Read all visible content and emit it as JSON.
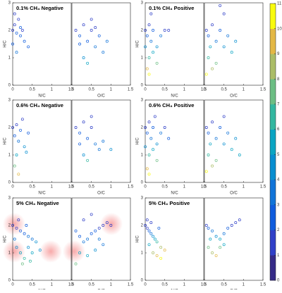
{
  "chart_data": [
    {
      "type": "scatter",
      "title": "0.1% CH₄ Negative",
      "xlabel": "N/C",
      "ylabel": "H/C",
      "xlim": [
        0,
        1.5
      ],
      "ylim": [
        0,
        3
      ],
      "xticks": [
        0,
        0.5,
        1,
        1.5
      ],
      "yticks": [
        0,
        1,
        2,
        3
      ],
      "x": [
        0,
        0,
        0.05,
        0.1,
        0.15,
        0.2,
        0.25,
        0.3,
        0.1,
        0.05,
        0.2,
        0.4
      ],
      "y": [
        2,
        1.5,
        2.2,
        1.9,
        2.4,
        1.8,
        2,
        1.6,
        1.2,
        2.6,
        2.1,
        1.4
      ],
      "color_values": [
        1,
        2,
        1,
        2,
        1,
        2,
        1,
        2,
        3,
        1,
        2,
        2
      ]
    },
    {
      "type": "scatter",
      "xlabel": "O/C",
      "xlim": [
        0,
        1.5
      ],
      "ylim": [
        0,
        3
      ],
      "xticks": [
        0,
        0.5,
        1,
        1.5
      ],
      "x": [
        0.1,
        0.2,
        0.3,
        0.4,
        0.5,
        0.6,
        0.7,
        0.8,
        0.3,
        0.5,
        0.2,
        0.6,
        0.9,
        0.4
      ],
      "y": [
        2,
        1.8,
        2.2,
        1.6,
        2,
        1.4,
        1.8,
        1.2,
        1,
        2.4,
        1.5,
        2.1,
        1.6,
        0.8
      ],
      "color_values": [
        1,
        2,
        1,
        2,
        1,
        3,
        2,
        3,
        4,
        1,
        2,
        1,
        3,
        5
      ]
    },
    {
      "type": "scatter",
      "title": "0.1% CH₄ Positive",
      "xlabel": "N/C",
      "ylabel": "H/C",
      "xlim": [
        0,
        1.5
      ],
      "ylim": [
        0,
        3
      ],
      "xticks": [
        0,
        0.5,
        1,
        1.5
      ],
      "yticks": [
        0,
        1,
        2,
        3
      ],
      "x": [
        0,
        0.05,
        0.1,
        0.15,
        0.2,
        0.3,
        0.4,
        0.5,
        0.1,
        0.2,
        0.05,
        0.3,
        0.15,
        0.6,
        0.1,
        0
      ],
      "y": [
        2,
        1.8,
        2.2,
        1.6,
        2,
        1.4,
        1.8,
        2,
        1,
        1.2,
        0.6,
        0.8,
        2.6,
        2,
        0.4,
        1.4
      ],
      "color_values": [
        1,
        2,
        1,
        3,
        2,
        4,
        3,
        1,
        6,
        5,
        9,
        7,
        1,
        1,
        10,
        4
      ]
    },
    {
      "type": "scatter",
      "xlabel": "O/C",
      "xlim": [
        0,
        1.5
      ],
      "ylim": [
        0,
        3
      ],
      "xticks": [
        0,
        0.5,
        1,
        1.5
      ],
      "x": [
        0.05,
        0.1,
        0.2,
        0.3,
        0.4,
        0.5,
        0.6,
        0.7,
        0.1,
        0.2,
        0.3,
        0.05,
        0.5,
        0.8,
        0.15,
        0.4
      ],
      "y": [
        2,
        1.8,
        2.2,
        1.6,
        2,
        1.4,
        1.8,
        1.2,
        1,
        0.6,
        0.8,
        0.4,
        2.6,
        1.6,
        1.4,
        2.9
      ],
      "color_values": [
        1,
        2,
        1,
        3,
        2,
        4,
        3,
        5,
        6,
        8,
        7,
        10,
        1,
        4,
        5,
        1
      ]
    },
    {
      "type": "scatter",
      "title": "0.6% CH₄ Negative",
      "xlabel": "N/C",
      "ylabel": "H/C",
      "xlim": [
        0,
        1.5
      ],
      "ylim": [
        0,
        3
      ],
      "xticks": [
        0,
        0.5,
        1,
        1.5
      ],
      "yticks": [
        0,
        1,
        2,
        3
      ],
      "x": [
        0,
        0.05,
        0.1,
        0.15,
        0.2,
        0.3,
        0.1,
        0.25,
        0.05,
        0.4,
        0.15,
        0.35
      ],
      "y": [
        2,
        1.7,
        2.1,
        1.5,
        1.9,
        1.3,
        1,
        2.3,
        0.6,
        1.8,
        0.3,
        1.1
      ],
      "color_values": [
        1,
        2,
        1,
        3,
        2,
        4,
        5,
        1,
        7,
        2,
        9,
        4
      ]
    },
    {
      "type": "scatter",
      "xlabel": "O/C",
      "xlim": [
        0,
        1.5
      ],
      "ylim": [
        0,
        3
      ],
      "xticks": [
        0,
        0.5,
        1,
        1.5
      ],
      "x": [
        0.1,
        0.2,
        0.3,
        0.4,
        0.5,
        0.6,
        0.7,
        0.3,
        0.5,
        0.2,
        0.8,
        0.4,
        1.0
      ],
      "y": [
        2,
        1.8,
        2.2,
        1.6,
        2,
        1.4,
        1.2,
        1,
        2.4,
        1.4,
        1.5,
        0.8,
        1.2
      ],
      "color_values": [
        1,
        2,
        1,
        2,
        1,
        3,
        3,
        4,
        1,
        2,
        3,
        6,
        4
      ]
    },
    {
      "type": "scatter",
      "title": "0.6% CH₄ Positive",
      "xlabel": "N/C",
      "ylabel": "H/C",
      "xlim": [
        0,
        1.5
      ],
      "ylim": [
        0,
        3
      ],
      "xticks": [
        0,
        0.5,
        1,
        1.5
      ],
      "yticks": [
        0,
        1,
        2,
        3
      ],
      "x": [
        0,
        0.05,
        0.1,
        0.15,
        0.2,
        0.3,
        0.4,
        0.5,
        0.1,
        0.2,
        0.05,
        0.3,
        0.6,
        0.1,
        0,
        0.25
      ],
      "y": [
        2,
        1.8,
        2.2,
        1.6,
        2,
        1.4,
        1.8,
        2,
        1,
        1.2,
        0.5,
        0.8,
        1.6,
        0.3,
        1.3,
        2.4
      ],
      "color_values": [
        1,
        2,
        1,
        3,
        2,
        4,
        3,
        1,
        6,
        5,
        9,
        7,
        2,
        10,
        4,
        1
      ]
    },
    {
      "type": "scatter",
      "xlabel": "O/C",
      "xlim": [
        0,
        1.5
      ],
      "ylim": [
        0,
        3
      ],
      "xticks": [
        0,
        0.5,
        1,
        1.5
      ],
      "x": [
        0.05,
        0.1,
        0.2,
        0.3,
        0.4,
        0.5,
        0.6,
        0.7,
        0.1,
        0.2,
        0.3,
        0.05,
        0.5,
        0.8,
        0.15,
        0.9
      ],
      "y": [
        2,
        1.8,
        2.2,
        1.6,
        2,
        1.4,
        1.8,
        1.2,
        1,
        0.6,
        0.8,
        0.4,
        2.4,
        1.6,
        1.4,
        1.0
      ],
      "color_values": [
        1,
        2,
        1,
        3,
        2,
        4,
        3,
        5,
        6,
        8,
        7,
        10,
        1,
        4,
        5,
        5
      ]
    },
    {
      "type": "scatter",
      "title": "5% CH₄ Negative",
      "xlabel": "N/C",
      "ylabel": "H/C",
      "xlim": [
        0,
        1.5
      ],
      "ylim": [
        0,
        3
      ],
      "xticks": [
        0,
        0.5,
        1,
        1.5
      ],
      "yticks": [
        0,
        1,
        2,
        3
      ],
      "x": [
        0,
        0.1,
        0.2,
        0.3,
        0.4,
        0.5,
        0.6,
        0.1,
        0.2,
        0.3,
        0.4,
        0.5,
        0.15,
        0.35,
        0.7,
        0.25,
        0.05,
        0.45
      ],
      "y": [
        2,
        1.9,
        1.8,
        1.7,
        1.6,
        1.5,
        1.4,
        1.2,
        1.0,
        0.8,
        1.2,
        1.0,
        2.2,
        2.0,
        1.1,
        0.6,
        1.5,
        0.7
      ],
      "color_values": [
        1,
        1,
        2,
        2,
        3,
        3,
        4,
        4,
        5,
        6,
        4,
        5,
        1,
        2,
        4,
        7,
        3,
        6
      ]
    },
    {
      "type": "scatter",
      "xlabel": "O/C",
      "xlim": [
        0,
        1.5
      ],
      "ylim": [
        0,
        3
      ],
      "xticks": [
        0,
        0.5,
        1,
        1.5
      ],
      "x": [
        0.1,
        0.2,
        0.3,
        0.4,
        0.5,
        0.6,
        0.7,
        0.8,
        0.9,
        1.0,
        0.2,
        0.4,
        0.6,
        0.3,
        0.5,
        0.8,
        0.1,
        0.7
      ],
      "y": [
        1.8,
        1.6,
        1.4,
        1.5,
        1.7,
        1.8,
        1.9,
        2.0,
        2.1,
        2.0,
        1.0,
        0.9,
        1.1,
        2.2,
        2.4,
        1.3,
        0.6,
        1.5
      ],
      "color_values": [
        2,
        2,
        3,
        3,
        2,
        2,
        1,
        1,
        1,
        1,
        5,
        5,
        4,
        1,
        1,
        3,
        7,
        3
      ]
    },
    {
      "type": "scatter",
      "title": "5% CH₄ Positive",
      "xlabel": "N/C",
      "ylabel": "H/C",
      "xlim": [
        0,
        1.5
      ],
      "ylim": [
        0,
        3
      ],
      "xticks": [
        0,
        0.5,
        1,
        1.5
      ],
      "yticks": [
        0,
        1,
        2,
        3
      ],
      "x": [
        0,
        0.05,
        0.1,
        0.15,
        0.2,
        0.25,
        0.3,
        0.4,
        0.5,
        0.1,
        0.2,
        0.3,
        0.4,
        0.05,
        0.15,
        0.35
      ],
      "y": [
        2,
        1.9,
        1.8,
        1.7,
        1.6,
        1.5,
        1.4,
        1.2,
        1.1,
        1.3,
        1.0,
        0.9,
        0.8,
        2.2,
        2.1,
        1.9
      ],
      "color_values": [
        1,
        1,
        2,
        3,
        4,
        5,
        6,
        8,
        9,
        5,
        8,
        9,
        10,
        1,
        1,
        2
      ]
    },
    {
      "type": "scatter",
      "xlabel": "O/C",
      "xlim": [
        0,
        1.5
      ],
      "ylim": [
        0,
        3
      ],
      "xticks": [
        0,
        0.5,
        1,
        1.5
      ],
      "x": [
        0.05,
        0.1,
        0.2,
        0.3,
        0.4,
        0.5,
        0.6,
        0.7,
        0.8,
        0.9,
        0.1,
        0.2,
        0.3,
        0.4,
        0.15,
        0.5
      ],
      "y": [
        2,
        1.9,
        1.8,
        1.6,
        1.5,
        1.7,
        1.9,
        2.0,
        2.1,
        2.2,
        1.2,
        1.0,
        0.9,
        1.2,
        1.5,
        1.3
      ],
      "color_values": [
        1,
        2,
        3,
        4,
        5,
        3,
        2,
        1,
        1,
        1,
        7,
        8,
        9,
        7,
        5,
        5
      ]
    },
    {
      "type": "colorbar",
      "clim": [
        0,
        11
      ],
      "ticks": [
        0,
        1,
        2,
        3,
        4,
        5,
        6,
        7,
        8,
        9,
        10,
        11
      ],
      "colormap": [
        "#352a87",
        "#3040c8",
        "#0f5cdd",
        "#1174d8",
        "#078ed0",
        "#0ba5c3",
        "#33b7a0",
        "#6cbe84",
        "#abbd67",
        "#e3b846",
        "#f9fb0e"
      ]
    }
  ]
}
